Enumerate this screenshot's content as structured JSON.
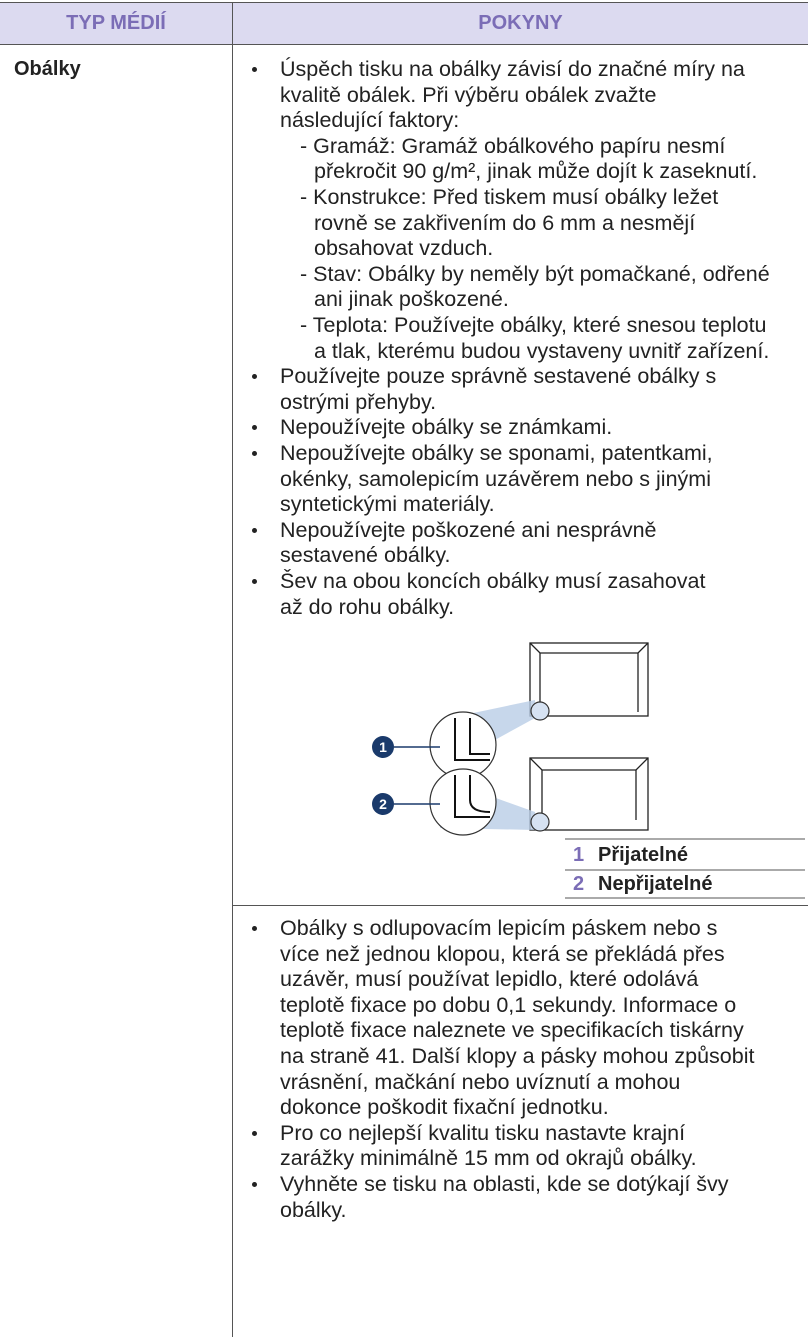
{
  "header": {
    "columns": [
      "TYP MÉDIÍ",
      "POKYNY"
    ]
  },
  "rows": [
    {
      "media": "Obálky",
      "bullets": [
        {
          "lines": [
            "Úspěch tisku na obálky závisí do značné míry na",
            "kvalitě obálek. Při výběru obálek zvažte",
            "následující faktory:"
          ],
          "sub": [
            {
              "lines": [
                "- Gramáž: Gramáž obálkového papíru nesmí",
                "překročit 90 g/m², jinak může dojít k zaseknutí."
              ]
            },
            {
              "lines": [
                "- Konstrukce: Před tiskem musí obálky ležet",
                "rovně se zakřivením do 6 mm a nesmějí",
                "obsahovat vzduch."
              ]
            },
            {
              "lines": [
                "- Stav: Obálky by neměly být pomačkané, odřené",
                "ani jinak poškozené."
              ]
            },
            {
              "lines": [
                "- Teplota: Používejte obálky, které snesou teplotu",
                "a tlak, kterému budou vystaveny uvnitř zařízení."
              ]
            }
          ]
        },
        {
          "lines": [
            "Používejte pouze správně sestavené obálky s",
            "ostrými přehyby."
          ]
        },
        {
          "lines": [
            "Nepoužívejte obálky se známkami."
          ]
        },
        {
          "lines": [
            "Nepoužívejte obálky se sponami, patentkami,",
            "okénky, samolepicím uzávěrem nebo s jinými",
            "syntetickými materiály."
          ]
        },
        {
          "lines": [
            "Nepoužívejte poškozené ani nesprávně",
            "sestavené obálky."
          ]
        },
        {
          "lines": [
            "Šev na obou koncích obálky musí zasahovat",
            "až do rohu obálky."
          ]
        }
      ],
      "figure": {
        "callouts": [
          "1",
          "2"
        ],
        "legend": [
          {
            "number": "1",
            "label": "Přijatelné"
          },
          {
            "number": "2",
            "label": "Nepřijatelné"
          }
        ]
      }
    },
    {
      "bullets": [
        {
          "lines": [
            "Obálky s odlupovacím lepicím páskem nebo s",
            "více než jednou klopou, která se překládá přes",
            "uzávěr, musí používat lepidlo, které odolává",
            "teplotě fixace po dobu 0,1 sekundy. Informace o",
            "teplotě fixace naleznete ve specifikacích tiskárny",
            "na straně 41. Další klopy a pásky mohou způsobit",
            "vrásnění, mačkání nebo uvíznutí a mohou",
            "dokonce poškodit fixační jednotku."
          ]
        },
        {
          "lines": [
            "Pro co nejlepší kvalitu tisku nastavte krajní",
            "zarážky minimálně 15 mm od okrajů obálky."
          ]
        },
        {
          "lines": [
            "Vyhněte se tisku na oblasti, kde se dotýkají švy",
            "obálky."
          ]
        }
      ]
    }
  ]
}
